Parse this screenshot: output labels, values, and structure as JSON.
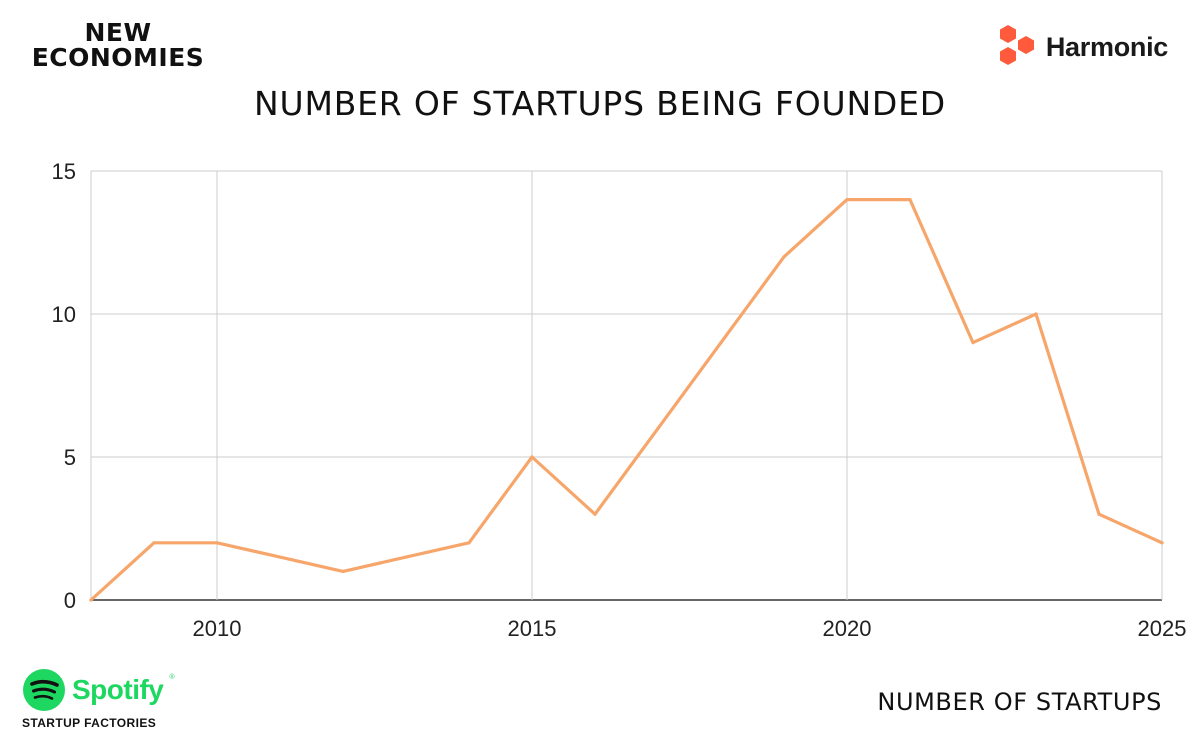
{
  "brand": {
    "new_economies_line1": "NEW",
    "new_economies_line2": "ECONOMIES",
    "harmonic": "Harmonic",
    "harmonic_icon": "hexagon-cluster-icon",
    "harmonic_color": "#ff5a3c",
    "spotify": "Spotify",
    "spotify_tm": "®",
    "spotify_icon": "spotify-logo-icon",
    "spotify_color": "#1ed760",
    "spotify_sub": "STARTUP FACTORIES"
  },
  "chart_data": {
    "type": "line",
    "title": "NUMBER OF STARTUPS BEING FOUNDED",
    "xlabel": "",
    "ylabel": "",
    "xlim": [
      2008,
      2025
    ],
    "ylim": [
      0,
      15
    ],
    "x_ticks": [
      2010,
      2015,
      2020,
      2025
    ],
    "y_ticks": [
      0,
      5,
      10,
      15
    ],
    "grid": true,
    "legend": "bottom-right",
    "series": [
      {
        "name": "NUMBER OF STARTUPS",
        "color": "#f7a66b",
        "x": [
          2008,
          2009,
          2010,
          2011,
          2012,
          2013,
          2014,
          2015,
          2016,
          2017,
          2018,
          2019,
          2020,
          2021,
          2022,
          2023,
          2024,
          2025
        ],
        "values": [
          0,
          2,
          2,
          1.5,
          1,
          1.5,
          2,
          5,
          3,
          6,
          9,
          12,
          14,
          14,
          9,
          10,
          3,
          2
        ]
      }
    ]
  }
}
